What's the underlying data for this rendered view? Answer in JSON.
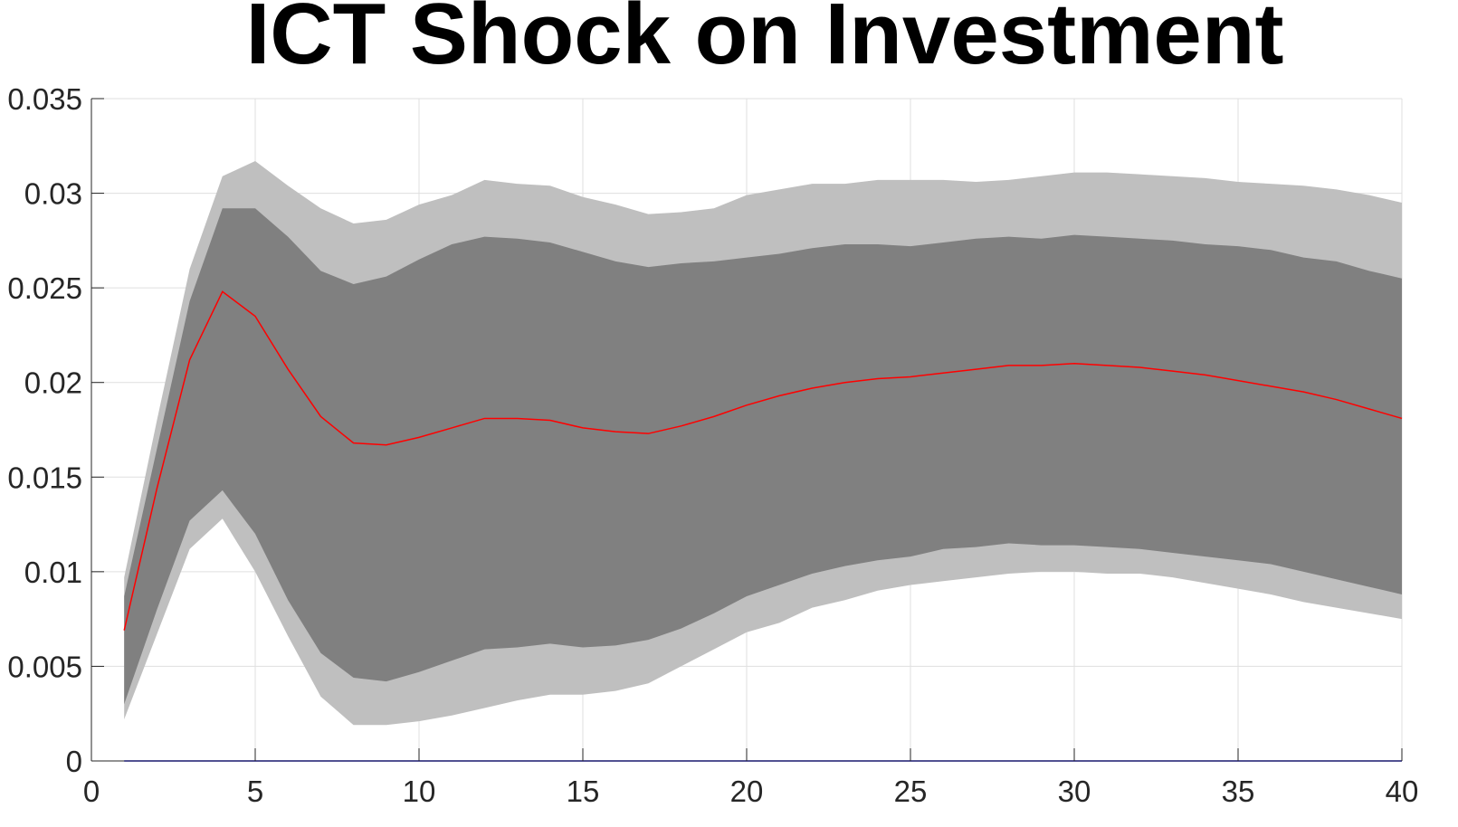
{
  "chart_data": {
    "type": "area",
    "title": "ICT Shock on Investment",
    "xlabel": "",
    "ylabel": "",
    "xlim": [
      0,
      40
    ],
    "ylim": [
      0,
      0.035
    ],
    "grid": true,
    "x_ticks": [
      0,
      5,
      10,
      15,
      20,
      25,
      30,
      35,
      40
    ],
    "y_ticks": [
      0,
      0.005,
      0.01,
      0.015,
      0.02,
      0.025,
      0.03,
      0.035
    ],
    "x_tick_labels": [
      "0",
      "5",
      "10",
      "15",
      "20",
      "25",
      "30",
      "35",
      "40"
    ],
    "y_tick_labels": [
      "0",
      "0.005",
      "0.01",
      "0.015",
      "0.02",
      "0.025",
      "0.03",
      "0.035"
    ],
    "x": [
      1,
      2,
      3,
      4,
      5,
      6,
      7,
      8,
      9,
      10,
      11,
      12,
      13,
      14,
      15,
      16,
      17,
      18,
      19,
      20,
      21,
      22,
      23,
      24,
      25,
      26,
      27,
      28,
      29,
      30,
      31,
      32,
      33,
      34,
      35,
      36,
      37,
      38,
      39,
      40
    ],
    "series": [
      {
        "role": "outer_band_upper",
        "color": "#bfbfbf",
        "values": [
          0.0097,
          0.018,
          0.026,
          0.0309,
          0.0317,
          0.0304,
          0.0292,
          0.0284,
          0.0286,
          0.0294,
          0.0299,
          0.0307,
          0.0305,
          0.0304,
          0.0298,
          0.0294,
          0.0289,
          0.029,
          0.0292,
          0.0299,
          0.0302,
          0.0305,
          0.0305,
          0.0307,
          0.0307,
          0.0307,
          0.0306,
          0.0307,
          0.0309,
          0.0311,
          0.0311,
          0.031,
          0.0309,
          0.0308,
          0.0306,
          0.0305,
          0.0304,
          0.0302,
          0.0299,
          0.0295
        ]
      },
      {
        "role": "inner_band_upper",
        "color": "#808080",
        "values": [
          0.0087,
          0.0165,
          0.0243,
          0.0292,
          0.0292,
          0.0277,
          0.0259,
          0.0252,
          0.0256,
          0.0265,
          0.0273,
          0.0277,
          0.0276,
          0.0274,
          0.0269,
          0.0264,
          0.0261,
          0.0263,
          0.0264,
          0.0266,
          0.0268,
          0.0271,
          0.0273,
          0.0273,
          0.0272,
          0.0274,
          0.0276,
          0.0277,
          0.0276,
          0.0278,
          0.0277,
          0.0276,
          0.0275,
          0.0273,
          0.0272,
          0.027,
          0.0266,
          0.0264,
          0.0259,
          0.0255
        ]
      },
      {
        "role": "median",
        "color": "#ff0000",
        "values": [
          0.0069,
          0.0144,
          0.0212,
          0.0248,
          0.0235,
          0.0207,
          0.0182,
          0.0168,
          0.0167,
          0.0171,
          0.0176,
          0.0181,
          0.0181,
          0.018,
          0.0176,
          0.0174,
          0.0173,
          0.0177,
          0.0182,
          0.0188,
          0.0193,
          0.0197,
          0.02,
          0.0202,
          0.0203,
          0.0205,
          0.0207,
          0.0209,
          0.0209,
          0.021,
          0.0209,
          0.0208,
          0.0206,
          0.0204,
          0.0201,
          0.0198,
          0.0195,
          0.0191,
          0.0186,
          0.0181
        ]
      },
      {
        "role": "inner_band_lower",
        "color": "#808080",
        "values": [
          0.003,
          0.008,
          0.0127,
          0.0143,
          0.012,
          0.0085,
          0.0057,
          0.0044,
          0.0042,
          0.0047,
          0.0053,
          0.0059,
          0.006,
          0.0062,
          0.006,
          0.0061,
          0.0064,
          0.007,
          0.0078,
          0.0087,
          0.0093,
          0.0099,
          0.0103,
          0.0106,
          0.0108,
          0.0112,
          0.0113,
          0.0115,
          0.0114,
          0.0114,
          0.0113,
          0.0112,
          0.011,
          0.0108,
          0.0106,
          0.0104,
          0.01,
          0.0096,
          0.0092,
          0.0088
        ]
      },
      {
        "role": "outer_band_lower",
        "color": "#bfbfbf",
        "values": [
          0.0022,
          0.0067,
          0.0112,
          0.0128,
          0.01,
          0.0066,
          0.0034,
          0.0019,
          0.0019,
          0.0021,
          0.0024,
          0.0028,
          0.0032,
          0.0035,
          0.0035,
          0.0037,
          0.0041,
          0.005,
          0.0059,
          0.0068,
          0.0073,
          0.0081,
          0.0085,
          0.009,
          0.0093,
          0.0095,
          0.0097,
          0.0099,
          0.01,
          0.01,
          0.0099,
          0.0099,
          0.0097,
          0.0094,
          0.0091,
          0.0088,
          0.0084,
          0.0081,
          0.0078,
          0.0075
        ]
      },
      {
        "role": "zero_line",
        "color": "#0000ff",
        "values": [
          0,
          0,
          0,
          0,
          0,
          0,
          0,
          0,
          0,
          0,
          0,
          0,
          0,
          0,
          0,
          0,
          0,
          0,
          0,
          0,
          0,
          0,
          0,
          0,
          0,
          0,
          0,
          0,
          0,
          0,
          0,
          0,
          0,
          0,
          0,
          0,
          0,
          0,
          0,
          0
        ]
      }
    ]
  }
}
